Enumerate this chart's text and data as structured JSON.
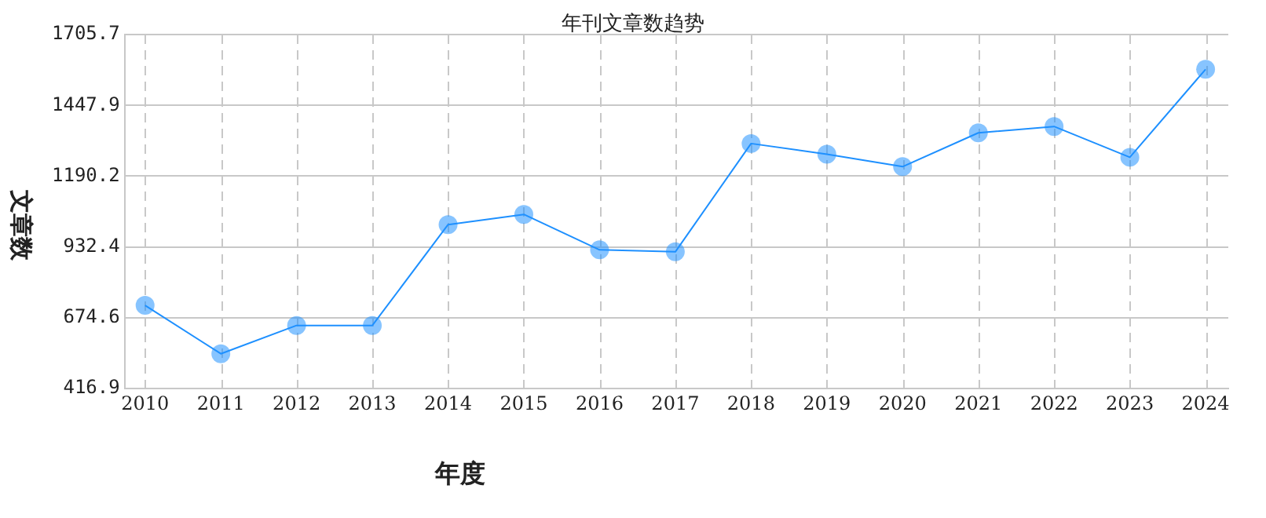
{
  "chart_data": {
    "type": "line",
    "title": "年刊文章数趋势",
    "xlabel": "年度",
    "ylabel": "文章数",
    "categories": [
      "2010",
      "2011",
      "2012",
      "2013",
      "2014",
      "2015",
      "2016",
      "2017",
      "2018",
      "2019",
      "2020",
      "2021",
      "2022",
      "2023",
      "2024"
    ],
    "series": [
      {
        "color": "#1e90ff",
        "values": [
          720,
          544,
          647,
          647,
          1014,
          1051,
          922,
          915,
          1309,
          1270,
          1225,
          1348,
          1371,
          1259,
          1579
        ]
      }
    ],
    "ylim": [
      416.9,
      1705.7
    ],
    "yticks": [
      416.9,
      674.6,
      932.4,
      1190.2,
      1447.9,
      1705.7
    ],
    "grid": true,
    "legend": false,
    "marker": "circle",
    "line_style": "solid"
  }
}
